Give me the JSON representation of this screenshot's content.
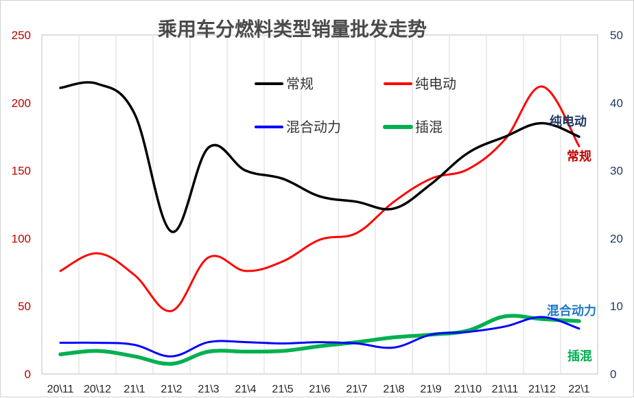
{
  "chart_data": {
    "type": "line",
    "title": "乘用车分燃料类型销量批发走势",
    "categories": [
      "20\\11",
      "20\\12",
      "21\\1",
      "21\\2",
      "21\\3",
      "21\\4",
      "21\\5",
      "21\\6",
      "21\\7",
      "21\\8",
      "21\\9",
      "21\\10",
      "21\\11",
      "21\\12",
      "22\\1"
    ],
    "left_axis": {
      "ylim": [
        0,
        250
      ],
      "ticks": [
        "0",
        "50",
        "100",
        "150",
        "200",
        "250"
      ],
      "color": "#c00000"
    },
    "right_axis": {
      "ylim": [
        0,
        50
      ],
      "ticks": [
        "0",
        "10",
        "20",
        "30",
        "40",
        "50"
      ],
      "color": "#1f3864"
    },
    "grid": "vertical",
    "legend_position": "top-center",
    "series": [
      {
        "name": "常规",
        "axis": "left",
        "color": "#000000",
        "values": [
          211,
          214,
          192,
          105,
          167,
          150,
          144,
          131,
          127,
          122,
          140,
          163,
          175,
          185,
          175
        ]
      },
      {
        "name": "纯电动",
        "axis": "right",
        "color": "#ff0000",
        "values": [
          15.2,
          17.8,
          14.6,
          9.3,
          17.2,
          15.2,
          16.6,
          19.8,
          20.8,
          25.4,
          28.8,
          30.2,
          34.6,
          42.4,
          33.6
        ]
      },
      {
        "name": "混合动力",
        "axis": "right",
        "color": "#0000ff",
        "values": [
          4.6,
          4.6,
          4.3,
          2.6,
          4.7,
          4.7,
          4.5,
          4.7,
          4.5,
          3.9,
          5.8,
          6.2,
          7.0,
          8.4,
          6.7
        ]
      },
      {
        "name": "插混",
        "axis": "right",
        "color": "#00b050",
        "values": [
          2.9,
          3.4,
          2.6,
          1.5,
          3.3,
          3.3,
          3.4,
          4.1,
          4.7,
          5.4,
          5.8,
          6.4,
          8.5,
          8.1,
          7.8
        ]
      }
    ],
    "annotations": [
      {
        "text": "纯电动",
        "color": "#1f3864"
      },
      {
        "text": "常规",
        "color": "#c00000"
      },
      {
        "text": "混合动力",
        "color": "#1f78c8"
      },
      {
        "text": "插混",
        "color": "#00b050"
      }
    ]
  }
}
